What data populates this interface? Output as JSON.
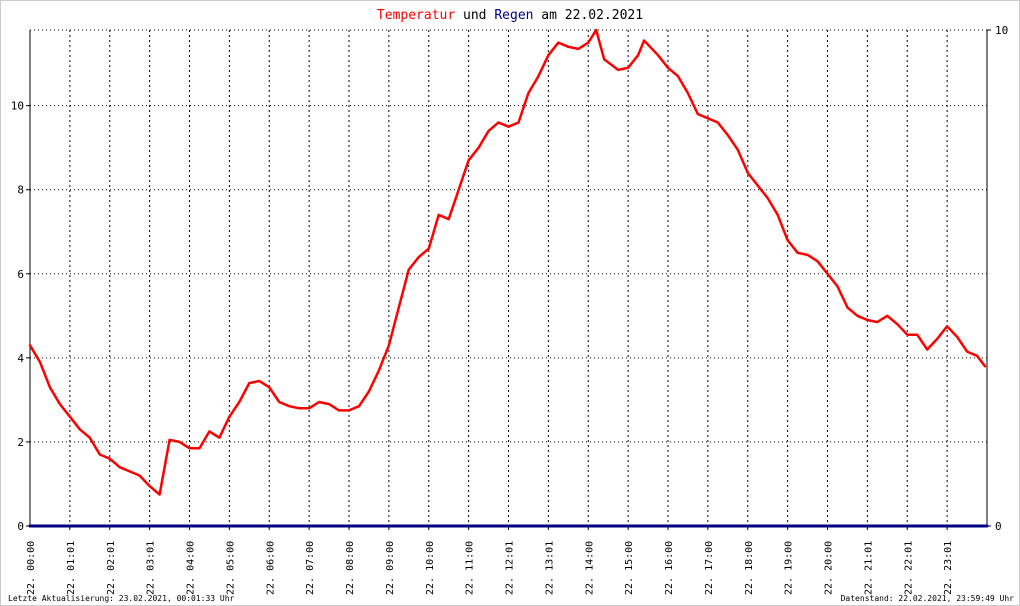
{
  "title": {
    "part1": "Temperatur",
    "part2": " und ",
    "part3": "Regen",
    "part4": " am 22.02.2021"
  },
  "colors": {
    "temperature": "#ff0000",
    "rain": "#000080",
    "text": "#000000"
  },
  "footer": {
    "left": "Letzte Aktualisierung: 23.02.2021, 00:01:33 Uhr",
    "right": "Datenstand: 22.02.2021, 23:59:49 Uhr"
  },
  "chart_data": {
    "type": "line",
    "title": "Temperatur und Regen am 22.02.2021",
    "xlabel": "",
    "ylabel": "",
    "xlim": [
      0,
      24
    ],
    "ylim": [
      0,
      11.8
    ],
    "ylim_right": [
      0,
      10
    ],
    "yticks": [
      0,
      2,
      4,
      6,
      8,
      10
    ],
    "yticks_right": [
      0,
      10
    ],
    "xticks": [
      {
        "x": 1,
        "label": "22. 01:01"
      },
      {
        "x": 2,
        "label": "22. 02:01"
      },
      {
        "x": 3,
        "label": "22. 03:01"
      },
      {
        "x": 4,
        "label": "22. 04:00"
      },
      {
        "x": 5,
        "label": "22. 05:00"
      },
      {
        "x": 6,
        "label": "22. 06:00"
      },
      {
        "x": 7,
        "label": "22. 07:00"
      },
      {
        "x": 8,
        "label": "22. 08:00"
      },
      {
        "x": 9,
        "label": "22. 09:00"
      },
      {
        "x": 10,
        "label": "22. 10:00"
      },
      {
        "x": 11,
        "label": "22. 11:00"
      },
      {
        "x": 12,
        "label": "22. 12:01"
      },
      {
        "x": 13,
        "label": "22. 13:01"
      },
      {
        "x": 14,
        "label": "22. 14:00"
      },
      {
        "x": 15,
        "label": "22. 15:00"
      },
      {
        "x": 16,
        "label": "22. 16:00"
      },
      {
        "x": 17,
        "label": "22. 17:00"
      },
      {
        "x": 18,
        "label": "22. 18:00"
      },
      {
        "x": 19,
        "label": "22. 19:00"
      },
      {
        "x": 20,
        "label": "22. 20:00"
      },
      {
        "x": 21,
        "label": "22. 21:01"
      },
      {
        "x": 22,
        "label": "22. 22:01"
      },
      {
        "x": 23,
        "label": "22. 23:01"
      }
    ],
    "x_first_label": "22. 00:00",
    "grid": true,
    "series": [
      {
        "name": "Temperatur",
        "color": "#ff0000",
        "points": [
          [
            0.0,
            4.3
          ],
          [
            0.25,
            3.9
          ],
          [
            0.5,
            3.3
          ],
          [
            0.75,
            2.9
          ],
          [
            1.0,
            2.6
          ],
          [
            1.25,
            2.3
          ],
          [
            1.5,
            2.1
          ],
          [
            1.75,
            1.7
          ],
          [
            2.0,
            1.6
          ],
          [
            2.25,
            1.4
          ],
          [
            2.5,
            1.3
          ],
          [
            2.75,
            1.2
          ],
          [
            3.0,
            0.95
          ],
          [
            3.25,
            0.75
          ],
          [
            3.5,
            2.05
          ],
          [
            3.75,
            2.0
          ],
          [
            4.0,
            1.85
          ],
          [
            4.25,
            1.85
          ],
          [
            4.5,
            2.25
          ],
          [
            4.75,
            2.1
          ],
          [
            5.0,
            2.6
          ],
          [
            5.25,
            2.95
          ],
          [
            5.5,
            3.4
          ],
          [
            5.75,
            3.45
          ],
          [
            6.0,
            3.3
          ],
          [
            6.25,
            2.95
          ],
          [
            6.5,
            2.85
          ],
          [
            6.75,
            2.8
          ],
          [
            7.0,
            2.8
          ],
          [
            7.25,
            2.95
          ],
          [
            7.5,
            2.9
          ],
          [
            7.75,
            2.75
          ],
          [
            8.0,
            2.75
          ],
          [
            8.25,
            2.85
          ],
          [
            8.5,
            3.2
          ],
          [
            8.75,
            3.7
          ],
          [
            9.0,
            4.3
          ],
          [
            9.25,
            5.2
          ],
          [
            9.5,
            6.1
          ],
          [
            9.75,
            6.4
          ],
          [
            10.0,
            6.6
          ],
          [
            10.25,
            7.4
          ],
          [
            10.5,
            7.3
          ],
          [
            10.75,
            8.0
          ],
          [
            11.0,
            8.7
          ],
          [
            11.25,
            9.0
          ],
          [
            11.5,
            9.4
          ],
          [
            11.75,
            9.6
          ],
          [
            12.0,
            9.5
          ],
          [
            12.25,
            9.6
          ],
          [
            12.5,
            10.3
          ],
          [
            12.75,
            10.7
          ],
          [
            13.0,
            11.2
          ],
          [
            13.25,
            11.5
          ],
          [
            13.5,
            11.4
          ],
          [
            13.75,
            11.35
          ],
          [
            14.0,
            11.5
          ],
          [
            14.2,
            11.8
          ],
          [
            14.4,
            11.1
          ],
          [
            14.75,
            10.85
          ],
          [
            15.0,
            10.9
          ],
          [
            15.25,
            11.2
          ],
          [
            15.4,
            11.55
          ],
          [
            15.75,
            11.2
          ],
          [
            16.0,
            10.9
          ],
          [
            16.25,
            10.7
          ],
          [
            16.5,
            10.3
          ],
          [
            16.75,
            9.8
          ],
          [
            17.0,
            9.7
          ],
          [
            17.25,
            9.6
          ],
          [
            17.5,
            9.3
          ],
          [
            17.75,
            8.95
          ],
          [
            18.0,
            8.4
          ],
          [
            18.25,
            8.1
          ],
          [
            18.5,
            7.8
          ],
          [
            18.75,
            7.4
          ],
          [
            19.0,
            6.8
          ],
          [
            19.25,
            6.5
          ],
          [
            19.5,
            6.45
          ],
          [
            19.75,
            6.3
          ],
          [
            20.0,
            6.0
          ],
          [
            20.25,
            5.7
          ],
          [
            20.5,
            5.2
          ],
          [
            20.75,
            5.0
          ],
          [
            21.0,
            4.9
          ],
          [
            21.25,
            4.85
          ],
          [
            21.5,
            5.0
          ],
          [
            21.75,
            4.8
          ],
          [
            22.0,
            4.55
          ],
          [
            22.25,
            4.55
          ],
          [
            22.5,
            4.2
          ],
          [
            22.75,
            4.45
          ],
          [
            23.0,
            4.75
          ],
          [
            23.25,
            4.5
          ],
          [
            23.5,
            4.15
          ],
          [
            23.75,
            4.05
          ],
          [
            23.95,
            3.8
          ]
        ]
      },
      {
        "name": "Regen",
        "color": "#000080",
        "points": [
          [
            0,
            0
          ],
          [
            24,
            0
          ]
        ]
      }
    ]
  }
}
